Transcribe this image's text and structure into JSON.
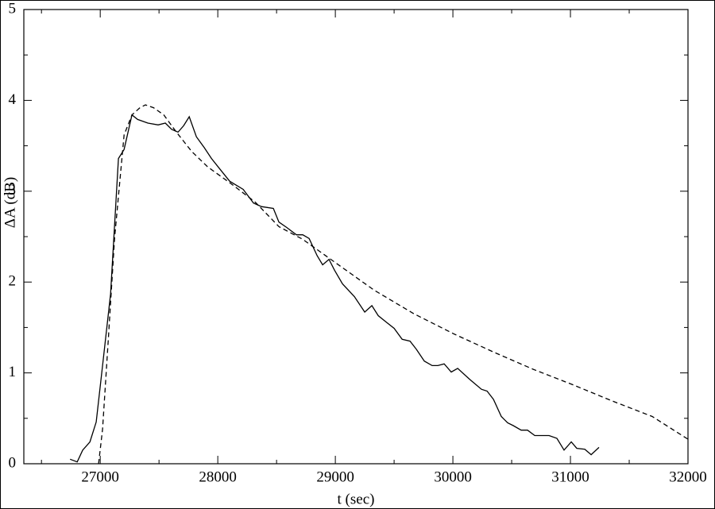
{
  "chart_data": {
    "type": "line",
    "x_label": "t (sec)",
    "y_label": "ΔA (dB)",
    "xlim": [
      26350,
      32000
    ],
    "ylim": [
      0,
      5
    ],
    "xticks": [
      27000,
      28000,
      29000,
      30000,
      31000,
      32000
    ],
    "yticks": [
      0,
      1,
      2,
      3,
      4,
      5
    ],
    "xminorticks": [
      26500,
      27500,
      28500,
      29500,
      30500,
      31500
    ],
    "yminorticks": [
      0.5,
      1.5,
      2.5,
      3.5,
      4.5
    ],
    "grid": false,
    "series": [
      {
        "color": "#000000",
        "dash": "solid",
        "x": [
          26743,
          26804,
          26851,
          26912,
          26966,
          27020,
          27088,
          27155,
          27203,
          27270,
          27318,
          27405,
          27493,
          27554,
          27608,
          27662,
          27709,
          27757,
          27818,
          27885,
          27946,
          28014,
          28101,
          28216,
          28304,
          28372,
          28473,
          28520,
          28588,
          28669,
          28723,
          28777,
          28845,
          28892,
          28946,
          28993,
          29061,
          29162,
          29250,
          29311,
          29365,
          29432,
          29500,
          29568,
          29635,
          29689,
          29757,
          29824,
          29872,
          29926,
          29986,
          30041,
          30142,
          30243,
          30291,
          30345,
          30412,
          30466,
          30514,
          30581,
          30635,
          30696,
          30750,
          30818,
          30885,
          30946,
          31007,
          31054,
          31122,
          31176,
          31243
        ],
        "values": [
          0.05,
          0.02,
          0.15,
          0.24,
          0.46,
          1.08,
          1.87,
          3.36,
          3.46,
          3.84,
          3.79,
          3.75,
          3.73,
          3.75,
          3.68,
          3.65,
          3.72,
          3.82,
          3.6,
          3.48,
          3.36,
          3.25,
          3.11,
          3.02,
          2.87,
          2.83,
          2.81,
          2.66,
          2.6,
          2.52,
          2.52,
          2.48,
          2.29,
          2.19,
          2.25,
          2.13,
          1.98,
          1.84,
          1.67,
          1.74,
          1.63,
          1.56,
          1.49,
          1.37,
          1.35,
          1.26,
          1.13,
          1.08,
          1.08,
          1.1,
          1.01,
          1.05,
          0.93,
          0.82,
          0.8,
          0.71,
          0.52,
          0.45,
          0.42,
          0.37,
          0.37,
          0.31,
          0.31,
          0.31,
          0.28,
          0.15,
          0.24,
          0.17,
          0.16,
          0.1,
          0.18
        ]
      },
      {
        "color": "#000000",
        "dash": "dashed",
        "x": [
          26986,
          27020,
          27068,
          27122,
          27203,
          27270,
          27338,
          27385,
          27453,
          27541,
          27642,
          27777,
          27912,
          28115,
          28318,
          28520,
          28723,
          28993,
          29331,
          29669,
          30007,
          30345,
          30682,
          31020,
          31358,
          31696,
          32000
        ],
        "values": [
          0,
          0.38,
          1.35,
          2.48,
          3.62,
          3.84,
          3.92,
          3.95,
          3.92,
          3.84,
          3.66,
          3.44,
          3.27,
          3.08,
          2.88,
          2.61,
          2.47,
          2.22,
          1.91,
          1.65,
          1.43,
          1.23,
          1.04,
          0.87,
          0.69,
          0.52,
          0.27
        ]
      }
    ]
  }
}
